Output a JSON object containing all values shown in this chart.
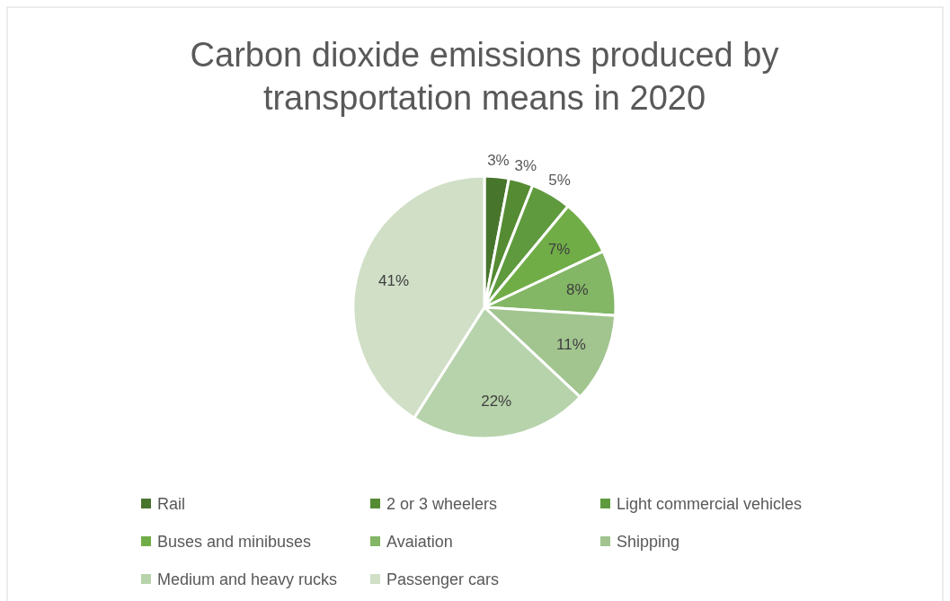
{
  "chart_data": {
    "type": "pie",
    "title": "Carbon dioxide emissions produced by transportation means in 2020",
    "categories": [
      "Rail",
      "2 or 3 wheelers",
      "Light commercial vehicles",
      "Buses and minibuses",
      "Avaiation",
      "Shipping",
      "Medium and heavy rucks",
      "Passenger cars"
    ],
    "values": [
      3,
      3,
      5,
      7,
      8,
      11,
      22,
      41
    ],
    "value_labels": [
      "3%",
      "3%",
      "5%",
      "7%",
      "8%",
      "11%",
      "22%",
      "41%"
    ],
    "colors": [
      "#48752c",
      "#558b33",
      "#5f9a3f",
      "#70ad47",
      "#83b665",
      "#a2c590",
      "#b7d3ab",
      "#d0dfc6"
    ],
    "legend": "bottom"
  }
}
